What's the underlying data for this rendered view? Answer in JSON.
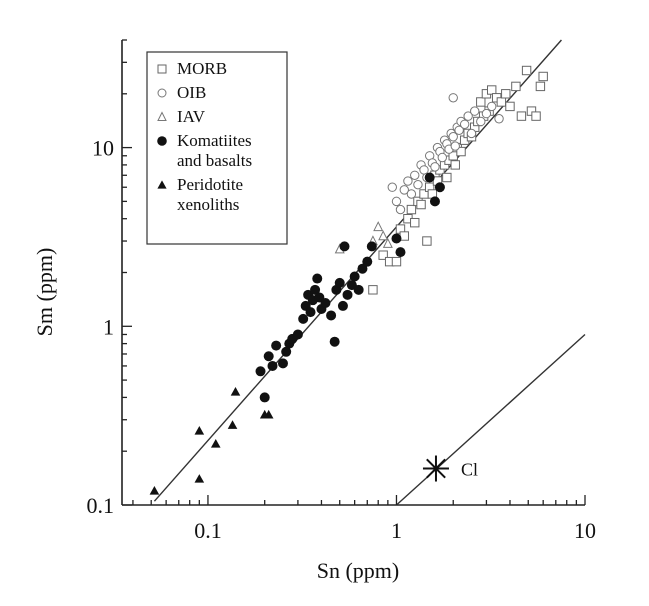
{
  "chart_data": {
    "type": "scatter",
    "title": "",
    "xlabel": "Sn (ppm)",
    "ylabel": "Sm (ppm)",
    "xscale": "log",
    "yscale": "log",
    "xlim": [
      0.035,
      10
    ],
    "ylim": [
      0.1,
      40
    ],
    "xticks": [
      {
        "value": 0.1,
        "label": "0.1"
      },
      {
        "value": 1,
        "label": "1"
      },
      {
        "value": 10,
        "label": "10"
      }
    ],
    "yticks": [
      {
        "value": 0.1,
        "label": "0.1"
      },
      {
        "value": 1,
        "label": "1"
      },
      {
        "value": 10,
        "label": "10"
      }
    ],
    "grid": false,
    "legend_position": "top-left",
    "legend": [
      {
        "label": "MORB",
        "marker": "open-square"
      },
      {
        "label": "OIB",
        "marker": "open-circle"
      },
      {
        "label": "IAV",
        "marker": "open-triangle"
      },
      {
        "label": "Komatiites\nand basalts",
        "marker": "filled-circle"
      },
      {
        "label": "Peridotite\nxenoliths",
        "marker": "filled-triangle"
      }
    ],
    "series": [
      {
        "name": "MORB",
        "marker": "open-square",
        "points": [
          [
            0.75,
            1.6
          ],
          [
            0.85,
            2.5
          ],
          [
            0.92,
            2.3
          ],
          [
            1.0,
            2.3
          ],
          [
            1.05,
            3.5
          ],
          [
            1.1,
            3.2
          ],
          [
            1.15,
            4.0
          ],
          [
            1.2,
            4.5
          ],
          [
            1.25,
            3.8
          ],
          [
            1.3,
            5.0
          ],
          [
            1.35,
            4.8
          ],
          [
            1.4,
            5.5
          ],
          [
            1.45,
            3.0
          ],
          [
            1.5,
            6.0
          ],
          [
            1.55,
            5.5
          ],
          [
            1.6,
            7.0
          ],
          [
            1.65,
            6.5
          ],
          [
            1.7,
            7.5
          ],
          [
            1.8,
            8.0
          ],
          [
            1.85,
            6.8
          ],
          [
            1.9,
            8.5
          ],
          [
            2.0,
            9.0
          ],
          [
            2.05,
            8.0
          ],
          [
            2.1,
            10.0
          ],
          [
            2.2,
            9.5
          ],
          [
            2.3,
            11.0
          ],
          [
            2.4,
            12.0
          ],
          [
            2.5,
            11.5
          ],
          [
            2.6,
            13.0
          ],
          [
            2.7,
            14.0
          ],
          [
            2.8,
            18.0
          ],
          [
            2.9,
            15.0
          ],
          [
            3.0,
            20.0
          ],
          [
            3.1,
            16.0
          ],
          [
            3.2,
            21.0
          ],
          [
            3.4,
            19.0
          ],
          [
            3.6,
            18.0
          ],
          [
            3.8,
            20.0
          ],
          [
            4.0,
            17.0
          ],
          [
            4.3,
            22.0
          ],
          [
            4.6,
            15.0
          ],
          [
            4.9,
            27.0
          ],
          [
            5.2,
            16.0
          ],
          [
            5.5,
            15.0
          ],
          [
            5.8,
            22.0
          ],
          [
            6.0,
            25.0
          ]
        ]
      },
      {
        "name": "OIB",
        "marker": "open-circle",
        "points": [
          [
            0.95,
            6.0
          ],
          [
            1.0,
            5.0
          ],
          [
            1.05,
            4.5
          ],
          [
            1.1,
            5.8
          ],
          [
            1.15,
            6.5
          ],
          [
            1.2,
            5.5
          ],
          [
            1.25,
            7.0
          ],
          [
            1.3,
            6.2
          ],
          [
            1.35,
            8.0
          ],
          [
            1.4,
            7.5
          ],
          [
            1.45,
            6.8
          ],
          [
            1.5,
            9.0
          ],
          [
            1.55,
            8.2
          ],
          [
            1.6,
            7.8
          ],
          [
            1.65,
            10.0
          ],
          [
            1.7,
            9.5
          ],
          [
            1.75,
            8.8
          ],
          [
            1.8,
            11.0
          ],
          [
            1.85,
            10.5
          ],
          [
            1.9,
            9.8
          ],
          [
            1.95,
            12.0
          ],
          [
            2.0,
            11.5
          ],
          [
            2.05,
            10.2
          ],
          [
            2.1,
            13.0
          ],
          [
            2.15,
            12.5
          ],
          [
            2.2,
            14.0
          ],
          [
            2.3,
            13.5
          ],
          [
            2.4,
            15.0
          ],
          [
            2.5,
            12.0
          ],
          [
            2.6,
            16.0
          ],
          [
            2.8,
            14.0
          ],
          [
            3.0,
            15.5
          ],
          [
            3.2,
            17.0
          ],
          [
            3.5,
            14.5
          ],
          [
            2.0,
            19.0
          ]
        ]
      },
      {
        "name": "IAV",
        "marker": "open-triangle",
        "points": [
          [
            0.5,
            2.7
          ],
          [
            0.75,
            3.0
          ],
          [
            0.8,
            3.6
          ],
          [
            0.85,
            3.2
          ],
          [
            0.9,
            2.9
          ]
        ]
      },
      {
        "name": "Komatiites and basalts",
        "marker": "filled-circle",
        "points": [
          [
            0.19,
            0.56
          ],
          [
            0.2,
            0.4
          ],
          [
            0.21,
            0.68
          ],
          [
            0.22,
            0.6
          ],
          [
            0.23,
            0.78
          ],
          [
            0.25,
            0.62
          ],
          [
            0.26,
            0.72
          ],
          [
            0.27,
            0.8
          ],
          [
            0.28,
            0.85
          ],
          [
            0.3,
            0.9
          ],
          [
            0.32,
            1.1
          ],
          [
            0.33,
            1.3
          ],
          [
            0.34,
            1.5
          ],
          [
            0.35,
            1.2
          ],
          [
            0.36,
            1.4
          ],
          [
            0.37,
            1.6
          ],
          [
            0.38,
            1.85
          ],
          [
            0.39,
            1.45
          ],
          [
            0.4,
            1.25
          ],
          [
            0.42,
            1.35
          ],
          [
            0.45,
            1.15
          ],
          [
            0.47,
            0.82
          ],
          [
            0.48,
            1.6
          ],
          [
            0.5,
            1.75
          ],
          [
            0.52,
            1.3
          ],
          [
            0.53,
            2.8
          ],
          [
            0.55,
            1.5
          ],
          [
            0.58,
            1.7
          ],
          [
            0.6,
            1.9
          ],
          [
            0.63,
            1.6
          ],
          [
            0.66,
            2.1
          ],
          [
            0.7,
            2.3
          ],
          [
            0.74,
            2.8
          ],
          [
            1.0,
            3.1
          ],
          [
            1.05,
            2.6
          ],
          [
            1.5,
            6.8
          ],
          [
            1.6,
            5.0
          ],
          [
            1.7,
            6.0
          ]
        ]
      },
      {
        "name": "Peridotite xenoliths",
        "marker": "filled-triangle",
        "points": [
          [
            0.052,
            0.12
          ],
          [
            0.09,
            0.26
          ],
          [
            0.09,
            0.14
          ],
          [
            0.11,
            0.22
          ],
          [
            0.135,
            0.28
          ],
          [
            0.14,
            0.43
          ],
          [
            0.21,
            0.32
          ],
          [
            0.2,
            0.32
          ]
        ]
      }
    ],
    "lines": [
      {
        "name": "trend",
        "x": [
          0.052,
          7.5
        ],
        "y": [
          0.105,
          40
        ]
      },
      {
        "name": "chondrite-ratio",
        "x": [
          1.0,
          10.0
        ],
        "y": [
          0.1,
          0.9
        ]
      }
    ],
    "annotations": [
      {
        "text": "Cl",
        "x": 1.62,
        "y": 0.16,
        "marker": "asterisk"
      }
    ]
  }
}
